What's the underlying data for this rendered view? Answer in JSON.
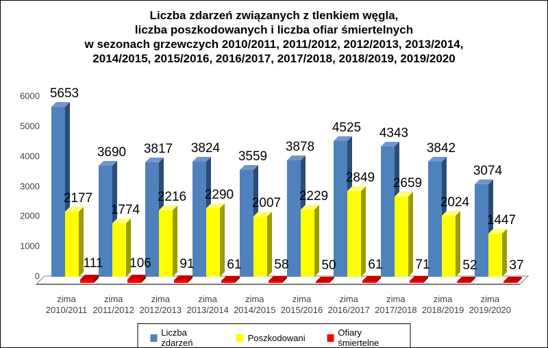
{
  "chart_data": {
    "type": "bar",
    "title_lines": [
      "Liczba zdarzeń związanych z tlenkiem węgla,",
      "liczba poszkodowanych i liczba ofiar śmiertelnych",
      "w sezonach grzewczych 2010/2011, 2011/2012, 2012/2013, 2013/2014,",
      "2014/2015, 2015/2016, 2016/2017, 2017/2018, 2018/2019, 2019/2020"
    ],
    "categories": [
      {
        "line1": "zima",
        "line2": "2010/2011"
      },
      {
        "line1": "zima",
        "line2": "2011/2012"
      },
      {
        "line1": "zima",
        "line2": "2012/2013"
      },
      {
        "line1": "zima",
        "line2": "2013/2014"
      },
      {
        "line1": "zima",
        "line2": "2014/2015"
      },
      {
        "line1": "zima",
        "line2": "2015/2016"
      },
      {
        "line1": "zima",
        "line2": "2016/2017"
      },
      {
        "line1": "zima",
        "line2": "2017/2018"
      },
      {
        "line1": "zima",
        "line2": "2018/2019"
      },
      {
        "line1": "zima",
        "line2": "2019/2020"
      }
    ],
    "series": [
      {
        "name": "Liczba zdarzeń",
        "color": "#4F81BD",
        "color_side": "#2B4D75",
        "color_top": "#7396C8",
        "values": [
          5653,
          3690,
          3817,
          3824,
          3559,
          3878,
          4525,
          4343,
          3842,
          3074
        ]
      },
      {
        "name": "Poszkodowani",
        "color": "#FFFF00",
        "color_side": "#9C9C00",
        "color_top": "#FFFF73",
        "values": [
          2177,
          1774,
          2216,
          2290,
          2007,
          2229,
          2849,
          2659,
          2024,
          1447
        ]
      },
      {
        "name": "Ofiary śmiertelne",
        "color": "#FF0000",
        "color_side": "#7F0000",
        "color_top": "#C90000",
        "values": [
          111,
          106,
          91,
          61,
          58,
          50,
          61,
          71,
          52,
          37
        ]
      }
    ],
    "yticks": [
      0,
      1000,
      2000,
      3000,
      4000,
      5000,
      6000
    ],
    "ylim": [
      0,
      6000
    ],
    "xlabel": "",
    "ylabel": "",
    "grid": false,
    "legend_position": "bottom",
    "floor_outline_color": "#7F7F7F",
    "value_labels_shown": true
  }
}
